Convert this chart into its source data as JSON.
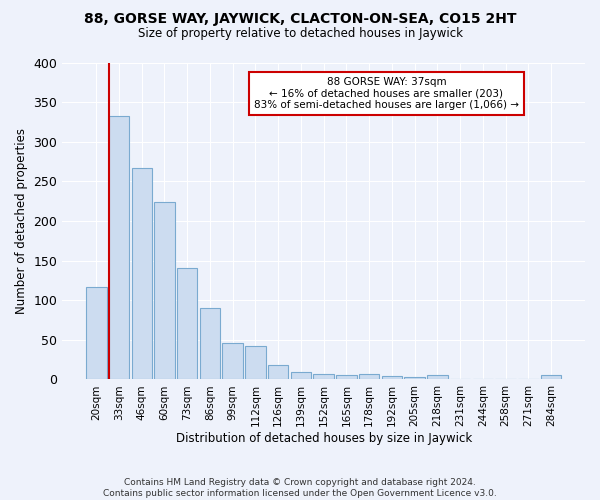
{
  "title1": "88, GORSE WAY, JAYWICK, CLACTON-ON-SEA, CO15 2HT",
  "title2": "Size of property relative to detached houses in Jaywick",
  "xlabel": "Distribution of detached houses by size in Jaywick",
  "ylabel": "Number of detached properties",
  "footer1": "Contains HM Land Registry data © Crown copyright and database right 2024.",
  "footer2": "Contains public sector information licensed under the Open Government Licence v3.0.",
  "categories": [
    "20sqm",
    "33sqm",
    "46sqm",
    "60sqm",
    "73sqm",
    "86sqm",
    "99sqm",
    "112sqm",
    "126sqm",
    "139sqm",
    "152sqm",
    "165sqm",
    "178sqm",
    "192sqm",
    "205sqm",
    "218sqm",
    "231sqm",
    "244sqm",
    "258sqm",
    "271sqm",
    "284sqm"
  ],
  "values": [
    117,
    332,
    267,
    224,
    141,
    90,
    46,
    42,
    18,
    10,
    7,
    5,
    7,
    4,
    3,
    5,
    0,
    0,
    0,
    0,
    5
  ],
  "bar_color": "#ccdcf0",
  "bar_edge_color": "#7aaad0",
  "annotation_line1": "88 GORSE WAY: 37sqm",
  "annotation_line2": "← 16% of detached houses are smaller (203)",
  "annotation_line3": "83% of semi-detached houses are larger (1,066) →",
  "annotation_box_color": "white",
  "annotation_box_edge_color": "#cc0000",
  "red_line_x": 0.55,
  "ylim": [
    0,
    400
  ],
  "yticks": [
    0,
    50,
    100,
    150,
    200,
    250,
    300,
    350,
    400
  ],
  "background_color": "#eef2fb",
  "grid_color": "white"
}
